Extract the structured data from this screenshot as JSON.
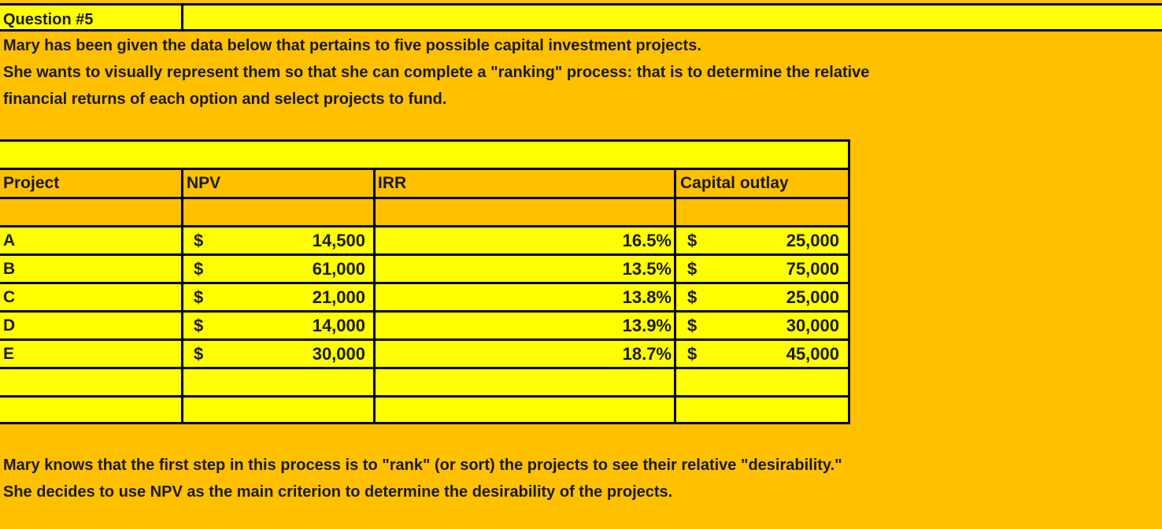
{
  "question": {
    "label": "Question #5"
  },
  "intro": {
    "line1": "Mary has been given the data below that pertains to five possible capital investment projects.",
    "line2": "She wants to visually represent them so that she can complete a \"ranking\" process: that is to determine the relative",
    "line3": "financial returns of each option and select projects to fund."
  },
  "table": {
    "headers": {
      "project": "Project",
      "npv": "NPV",
      "irr": "IRR",
      "capital": "Capital outlay"
    },
    "currency_symbol": "$",
    "rows": [
      {
        "project": "A",
        "npv": "14,500",
        "irr": "16.5%",
        "capital": "25,000"
      },
      {
        "project": "B",
        "npv": "61,000",
        "irr": "13.5%",
        "capital": "75,000"
      },
      {
        "project": "C",
        "npv": "21,000",
        "irr": "13.8%",
        "capital": "25,000"
      },
      {
        "project": "D",
        "npv": "14,000",
        "irr": "13.9%",
        "capital": "30,000"
      },
      {
        "project": "E",
        "npv": "30,000",
        "irr": "18.7%",
        "capital": "45,000"
      }
    ]
  },
  "outro": {
    "line1": "Mary knows that the first step in this process is to \"rank\" (or sort) the projects to see their relative \"desirability.\"",
    "line2": "She decides to use NPV as the main criterion to determine the desirability of the projects."
  },
  "colors": {
    "background": "#FFC000",
    "highlight": "#FFFF00",
    "border": "#000000"
  }
}
